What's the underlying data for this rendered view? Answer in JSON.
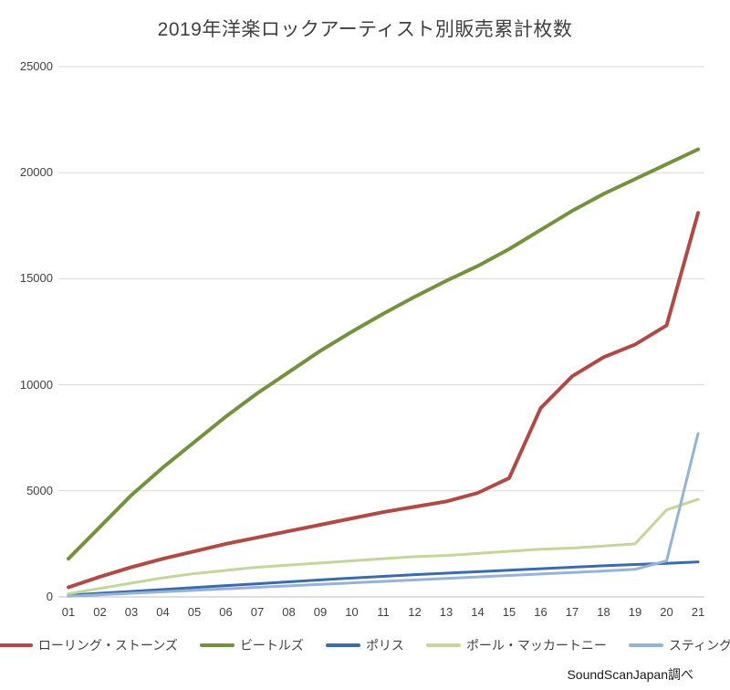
{
  "title": "2019年洋楽ロックアーティスト別販売累計枚数",
  "source": "SoundScanJapan調べ",
  "chart_data": {
    "type": "line",
    "title": "2019年洋楽ロックアーティスト別販売累計枚数",
    "xlabel": "",
    "ylabel": "",
    "x_labels": [
      "01",
      "02",
      "03",
      "04",
      "05",
      "06",
      "07",
      "08",
      "09",
      "10",
      "11",
      "12",
      "13",
      "14",
      "15",
      "16",
      "17",
      "18",
      "19",
      "20",
      "21"
    ],
    "yticks": [
      0,
      5000,
      10000,
      15000,
      20000,
      25000
    ],
    "ylim": [
      0,
      25000
    ],
    "grid": "horizontal",
    "legend_position": "bottom",
    "series": [
      {
        "name": "ローリング・ストーンズ",
        "color": "#b04a45",
        "values": [
          450,
          950,
          1400,
          1800,
          2150,
          2500,
          2800,
          3100,
          3400,
          3700,
          4000,
          4250,
          4500,
          4900,
          5600,
          8900,
          10400,
          11300,
          11900,
          12800,
          18100
        ]
      },
      {
        "name": "ビートルズ",
        "color": "#74913d",
        "values": [
          1800,
          3300,
          4800,
          6100,
          7300,
          8500,
          9600,
          10600,
          11600,
          12500,
          13350,
          14150,
          14900,
          15600,
          16400,
          17300,
          18200,
          19000,
          19700,
          20400,
          21100
        ]
      },
      {
        "name": "ポリス",
        "color": "#3a6cac",
        "values": [
          80,
          170,
          260,
          350,
          440,
          530,
          620,
          710,
          800,
          890,
          970,
          1050,
          1120,
          1190,
          1260,
          1330,
          1400,
          1470,
          1530,
          1580,
          1650
        ]
      },
      {
        "name": "ポール・マッカートニー",
        "color": "#c3d69b",
        "values": [
          150,
          400,
          650,
          900,
          1100,
          1250,
          1400,
          1500,
          1600,
          1700,
          1800,
          1900,
          1950,
          2050,
          2150,
          2250,
          2300,
          2400,
          2500,
          4100,
          4600
        ]
      },
      {
        "name": "スティング",
        "color": "#95b3d7",
        "values": [
          30,
          100,
          170,
          240,
          310,
          380,
          450,
          520,
          590,
          660,
          730,
          800,
          870,
          940,
          1010,
          1080,
          1150,
          1220,
          1300,
          1700,
          7700
        ]
      }
    ]
  }
}
